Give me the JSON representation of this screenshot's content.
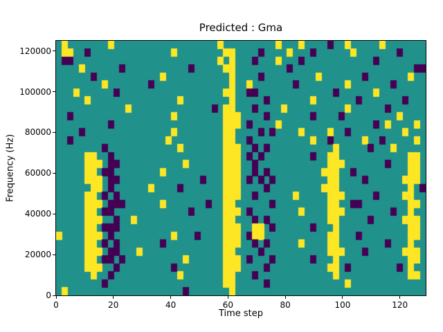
{
  "figure": {
    "background": "#ffffff"
  },
  "chart_data": {
    "type": "heatmap",
    "title": "Predicted : Gma",
    "xlabel": "Time step",
    "ylabel": "Frequency (Hz)",
    "xlim": [
      0,
      129
    ],
    "ylim": [
      0,
      125000
    ],
    "x_ticks": [
      0,
      20,
      40,
      60,
      80,
      100,
      120
    ],
    "y_ticks": [
      0,
      20000,
      40000,
      60000,
      80000,
      100000,
      120000
    ],
    "colormap": "viridis",
    "colors": {
      "low": "#440154",
      "mid": "#21918c",
      "high": "#fde725"
    },
    "grid_rows": 32,
    "grid_cols": 64,
    "grid_row_order": "top-to-bottom (highest frequency first)",
    "grid_cell_span": {
      "time_steps": 2,
      "hz": 3906
    },
    "grid_legend": {
      "0": "low (dark purple)",
      "1": "background (teal)",
      "2": "high (yellow)"
    },
    "grid": [
      "1211111112111111111111111111211111111121112111101121111121111111",
      "1221101111111111111121111111122111101111211101111112111111101111",
      "1001111111111111111111111111212111011121110111111111111011111111",
      "1111211111101111111111101111122111111111011111111111111111111100",
      "1111110111111111112111111111112111101111111112111111101111111211",
      "1111111121111111011111111111112112111111101111111121111111011111",
      "1112111111011111111111111111122110011111111111110111111211111111",
      "1111121111111111111112111111112111110111111121111111011111110111",
      "1111111111112111111111111110122111011112111111111121111110111111",
      "1101111111111111111121111111122211110111111101111011111111121111",
      "1111111110111111111111111111122210111121111111111111111012111121",
      "1111011111111111111121111111122111101011112111121101111111112111",
      "1101111111111111111211111111122110111111111121101111121101111121",
      "1111111101111111111112111111122211010111111111112111110111211111",
      "1111122110111111111111111111122210101111111101122111111111111221",
      "1111122210011111111111211111122211011111111111122211111110111221",
      "1111122100111111112111111111122211010111111111222110111111111221",
      "1111122210011111111111111011122210101011111111122111101111112221",
      "1111112210111111211110111111122211110111111111222111111111111210",
      "1111122101011111111111111111122211011111121111122211111011112211",
      "1111122210001111112111111101122111111011111111122110011111111221",
      "1111122100111111111111101111122210111111112111122211111111011211",
      "1111122211011211111111111111122111010111111111122111110111112221",
      "1111122100011111111111111111122211221011111101112111111111111221",
      "2111122210111111111121110111122210221111111111122111011111111221",
      "1111122101011111110111111111122211010111112111122111111110111211",
      "1111122210011121111111111111122111101111111111122211101111112221",
      "1111122100101111111111211111122210111011111101112111111111111221",
      "1111122211011111111101111111122211110111111111122101111111101211",
      "1111112110111111111112111111122111011111111111112111111111111221",
      "1111111101111111111111111111122111110111111111111121111111111111",
      "1211111111111111111111011111112111111111111111111111111111111111"
    ]
  }
}
